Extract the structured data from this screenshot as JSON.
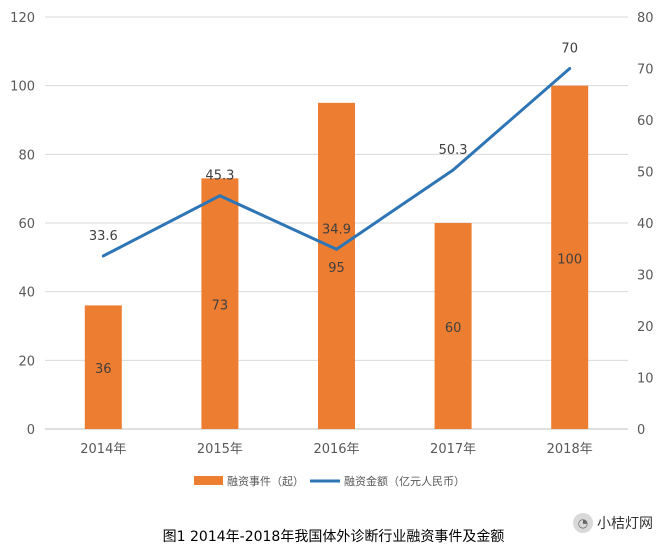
{
  "chart_data": {
    "type": "bar+line",
    "categories": [
      "2014年",
      "2015年",
      "2016年",
      "2017年",
      "2018年"
    ],
    "series": [
      {
        "name": "融资事件（起）",
        "type": "bar",
        "axis": "left",
        "values": [
          36,
          73,
          95,
          60,
          100
        ],
        "color": "#ED7D31"
      },
      {
        "name": "融资金额（亿元人民币）",
        "type": "line",
        "axis": "right",
        "values": [
          33.6,
          45.3,
          34.9,
          50.3,
          70
        ],
        "color": "#2E75B6"
      }
    ],
    "y_left": {
      "min": 0,
      "max": 120,
      "ticks": [
        0,
        20,
        40,
        60,
        80,
        100,
        120
      ]
    },
    "y_right": {
      "min": 0,
      "max": 80,
      "ticks": [
        0,
        10,
        20,
        30,
        40,
        50,
        60,
        70,
        80
      ]
    },
    "legend_position": "bottom",
    "grid": true,
    "caption": "图1   2014年-2018年我国体外诊断行业融资事件及金额"
  },
  "watermark": {
    "text": "小桔灯网",
    "icon": "wechat-icon"
  }
}
